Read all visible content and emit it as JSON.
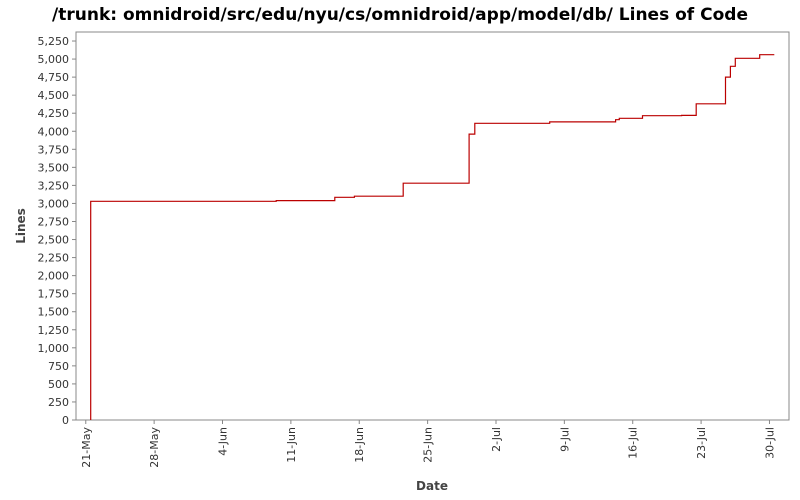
{
  "chart_data": {
    "type": "line",
    "title": "/trunk: omnidroid/src/edu/nyu/cs/omnidroid/app/model/db/ Lines of Code",
    "xlabel": "Date",
    "ylabel": "Lines",
    "x_type": "date",
    "step": true,
    "grid": false,
    "legend": "none",
    "xlim": [
      "2008-05-20",
      "2008-08-01"
    ],
    "ylim": [
      0,
      5375
    ],
    "x_ticks": [
      {
        "date": "2008-05-21",
        "label": "21-May"
      },
      {
        "date": "2008-05-28",
        "label": "28-May"
      },
      {
        "date": "2008-06-04",
        "label": "4-Jun"
      },
      {
        "date": "2008-06-11",
        "label": "11-Jun"
      },
      {
        "date": "2008-06-18",
        "label": "18-Jun"
      },
      {
        "date": "2008-06-25",
        "label": "25-Jun"
      },
      {
        "date": "2008-07-02",
        "label": "2-Jul"
      },
      {
        "date": "2008-07-09",
        "label": "9-Jul"
      },
      {
        "date": "2008-07-16",
        "label": "16-Jul"
      },
      {
        "date": "2008-07-23",
        "label": "23-Jul"
      },
      {
        "date": "2008-07-30",
        "label": "30-Jul"
      }
    ],
    "y_ticks": [
      {
        "value": 0,
        "label": "0"
      },
      {
        "value": 250,
        "label": "250"
      },
      {
        "value": 500,
        "label": "500"
      },
      {
        "value": 750,
        "label": "750"
      },
      {
        "value": 1000,
        "label": "1,000"
      },
      {
        "value": 1250,
        "label": "1,250"
      },
      {
        "value": 1500,
        "label": "1,500"
      },
      {
        "value": 1750,
        "label": "1,750"
      },
      {
        "value": 2000,
        "label": "2,000"
      },
      {
        "value": 2250,
        "label": "2,250"
      },
      {
        "value": 2500,
        "label": "2,500"
      },
      {
        "value": 2750,
        "label": "2,750"
      },
      {
        "value": 3000,
        "label": "3,000"
      },
      {
        "value": 3250,
        "label": "3,250"
      },
      {
        "value": 3500,
        "label": "3,500"
      },
      {
        "value": 3750,
        "label": "3,750"
      },
      {
        "value": 4000,
        "label": "4,000"
      },
      {
        "value": 4250,
        "label": "4,250"
      },
      {
        "value": 4500,
        "label": "4,500"
      },
      {
        "value": 4750,
        "label": "4,750"
      },
      {
        "value": 5000,
        "label": "5,000"
      },
      {
        "value": 5250,
        "label": "5,250"
      }
    ],
    "series": [
      {
        "color": "#bb0000",
        "points": [
          {
            "x": "2008-05-21 12:00",
            "y": 0
          },
          {
            "x": "2008-05-21 12:00",
            "y": 3030
          },
          {
            "x": "2008-06-09 12:00",
            "y": 3040
          },
          {
            "x": "2008-06-15 12:00",
            "y": 3085
          },
          {
            "x": "2008-06-17 12:00",
            "y": 3100
          },
          {
            "x": "2008-06-22 12:00",
            "y": 3280
          },
          {
            "x": "2008-06-29 06:00",
            "y": 3960
          },
          {
            "x": "2008-06-29 20:00",
            "y": 4110
          },
          {
            "x": "2008-07-07 12:00",
            "y": 4130
          },
          {
            "x": "2008-07-14 06:00",
            "y": 4160
          },
          {
            "x": "2008-07-14 15:00",
            "y": 4180
          },
          {
            "x": "2008-07-17 00:00",
            "y": 4215
          },
          {
            "x": "2008-07-21 00:00",
            "y": 4220
          },
          {
            "x": "2008-07-22 12:00",
            "y": 4380
          },
          {
            "x": "2008-07-25 12:00",
            "y": 4750
          },
          {
            "x": "2008-07-26 00:00",
            "y": 4900
          },
          {
            "x": "2008-07-26 12:00",
            "y": 5010
          },
          {
            "x": "2008-07-29 00:00",
            "y": 5060
          },
          {
            "x": "2008-07-30 12:00",
            "y": 5060
          }
        ]
      }
    ]
  }
}
